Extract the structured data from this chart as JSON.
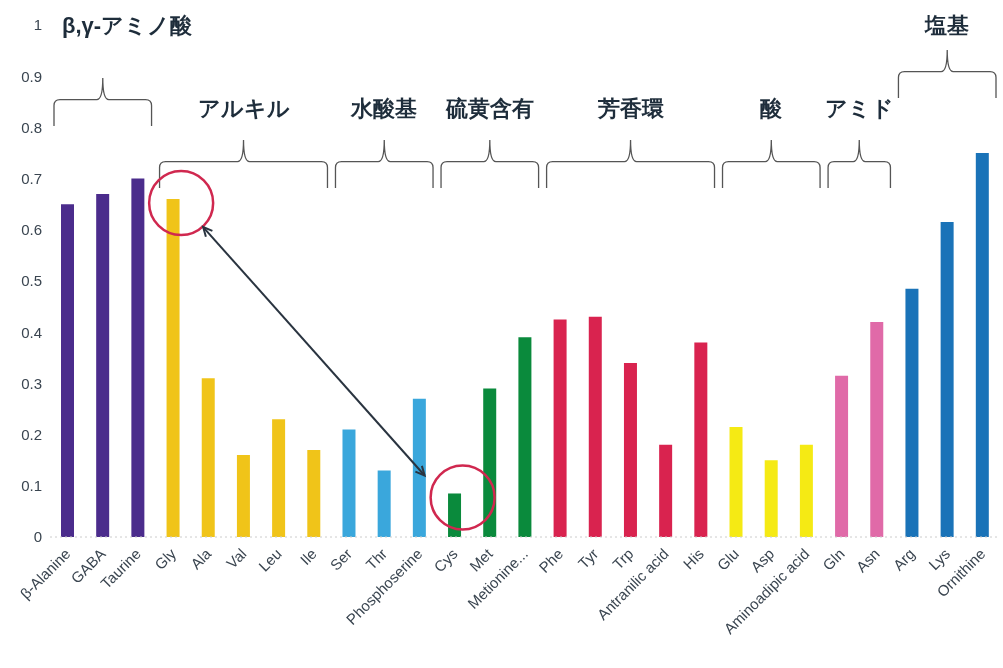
{
  "chart_data": {
    "type": "bar",
    "categories": [
      "β-Alanine",
      "GABA",
      "Taurine",
      "Gly",
      "Ala",
      "Val",
      "Leu",
      "Ile",
      "Ser",
      "Thr",
      "Phosphoserine",
      "Cys",
      "Met",
      "Metionine...",
      "Phe",
      "Tyr",
      "Trp",
      "Antranilic acid",
      "His",
      "Glu",
      "Asp",
      "Aminoadipic acid",
      "Gln",
      "Asn",
      "Arg",
      "Lys",
      "Ornithine"
    ],
    "values": [
      0.65,
      0.67,
      0.7,
      0.66,
      0.31,
      0.16,
      0.23,
      0.17,
      0.21,
      0.13,
      0.27,
      0.085,
      0.29,
      0.39,
      0.425,
      0.43,
      0.34,
      0.18,
      0.38,
      0.215,
      0.15,
      0.18,
      0.315,
      0.42,
      0.485,
      0.615,
      0.75
    ],
    "colors": [
      "#4b2c8c",
      "#4b2c8c",
      "#4b2c8c",
      "#f0c419",
      "#f0c419",
      "#f0c419",
      "#f0c419",
      "#f0c419",
      "#3aa7dc",
      "#3aa7dc",
      "#3aa7dc",
      "#0a8a3c",
      "#0a8a3c",
      "#0a8a3c",
      "#d9234f",
      "#d9234f",
      "#d9234f",
      "#d9234f",
      "#d9234f",
      "#f5ea14",
      "#f5ea14",
      "#f5ea14",
      "#e06aa8",
      "#e06aa8",
      "#1a73b8",
      "#1a73b8",
      "#1a73b8"
    ],
    "ylim": [
      0,
      1
    ],
    "yticks": [
      0,
      0.1,
      0.2,
      0.3,
      0.4,
      0.5,
      0.6,
      0.7,
      0.8,
      0.9,
      1
    ],
    "annotations": [
      "β,γ-アミノ酸",
      "アルキル",
      "水酸基",
      "硫黄含有",
      "芳香環",
      "酸",
      "アミド",
      "塩基"
    ]
  }
}
